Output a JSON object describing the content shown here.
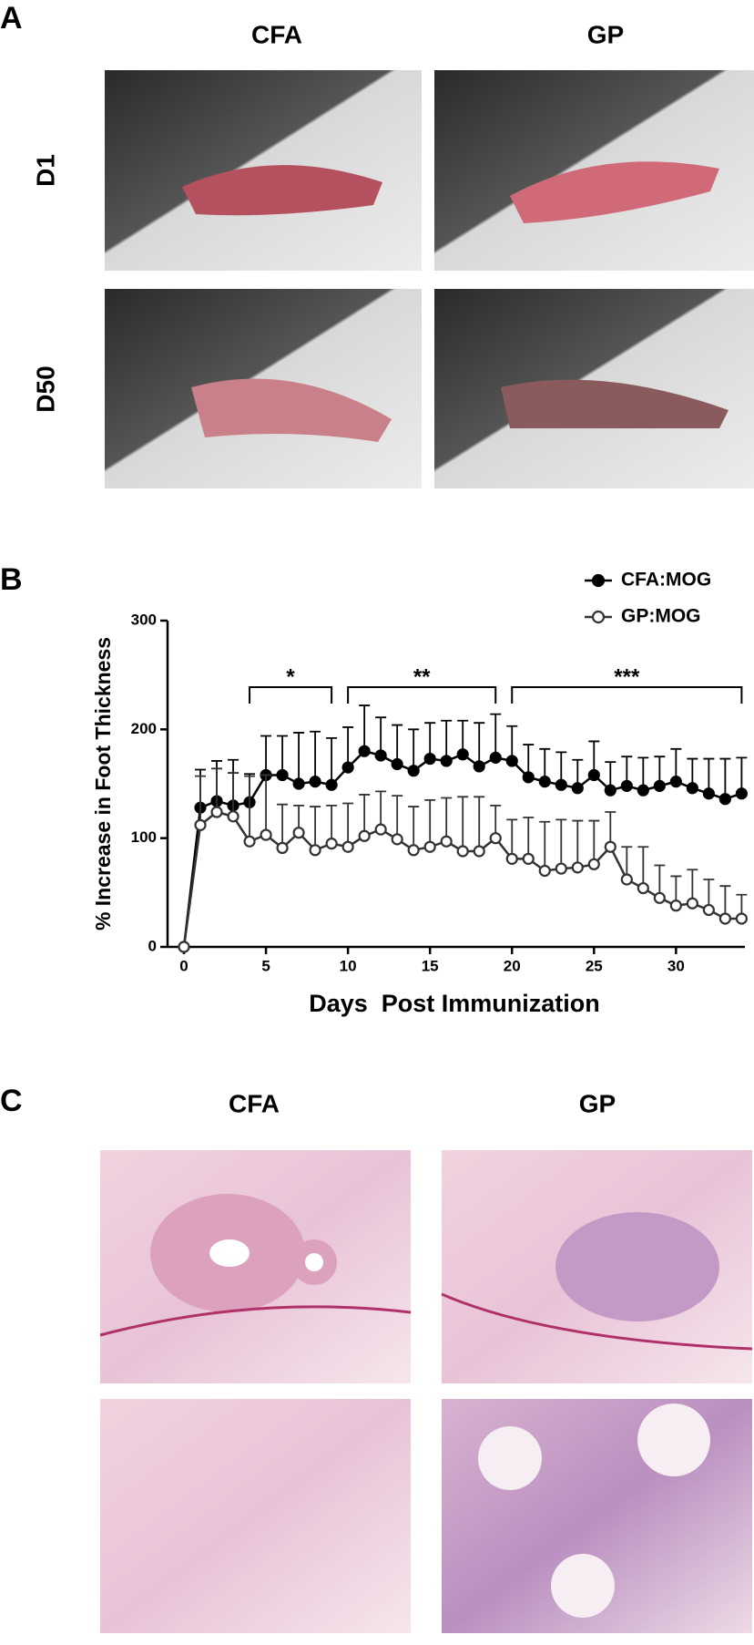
{
  "panel_a": {
    "label": "A",
    "columns": [
      "CFA",
      "GP"
    ],
    "rows": [
      "D1",
      "D50"
    ]
  },
  "chart_data": {
    "type": "line",
    "label": "B",
    "xlabel": "Days  Post Immunization",
    "ylabel": "% Increase in Foot Thickness",
    "x": [
      0,
      1,
      2,
      3,
      4,
      5,
      6,
      7,
      8,
      9,
      10,
      11,
      12,
      13,
      14,
      15,
      16,
      17,
      18,
      19,
      20,
      21,
      22,
      23,
      24,
      25,
      26,
      27,
      28,
      29,
      30,
      31,
      32,
      33,
      34
    ],
    "series": [
      {
        "name": "CFA:MOG",
        "color": "#000000",
        "marker_fill": "#000000",
        "values": [
          0,
          128,
          134,
          130,
          133,
          158,
          158,
          150,
          152,
          149,
          165,
          180,
          176,
          168,
          162,
          173,
          171,
          177,
          166,
          174,
          171,
          156,
          152,
          149,
          146,
          158,
          144,
          148,
          144,
          148,
          152,
          146,
          141,
          136,
          141
        ],
        "errors": [
          0,
          35,
          37,
          42,
          26,
          36,
          36,
          47,
          46,
          43,
          37,
          42,
          35,
          36,
          38,
          33,
          37,
          31,
          40,
          40,
          32,
          30,
          30,
          30,
          26,
          31,
          26,
          27,
          30,
          27,
          30,
          27,
          32,
          37,
          33
        ]
      },
      {
        "name": "GP:MOG",
        "color": "#333333",
        "marker_fill": "#ffffff",
        "values": [
          0,
          112,
          124,
          120,
          97,
          103,
          91,
          105,
          89,
          95,
          92,
          102,
          108,
          99,
          89,
          92,
          97,
          88,
          88,
          100,
          81,
          81,
          70,
          72,
          73,
          76,
          92,
          62,
          54,
          45,
          38,
          40,
          34,
          26,
          26
        ],
        "errors": [
          0,
          45,
          40,
          40,
          60,
          55,
          40,
          25,
          40,
          35,
          40,
          38,
          35,
          40,
          40,
          43,
          40,
          50,
          50,
          30,
          36,
          38,
          45,
          45,
          43,
          40,
          32,
          30,
          38,
          30,
          27,
          31,
          28,
          30,
          22
        ]
      }
    ],
    "annotations": [
      {
        "text": "*",
        "x_range": [
          4,
          9
        ]
      },
      {
        "text": "**",
        "x_range": [
          10,
          19
        ]
      },
      {
        "text": "***",
        "x_range": [
          20,
          34
        ]
      }
    ],
    "xlim": [
      -1,
      34.2
    ],
    "xticks": [
      0,
      5,
      10,
      15,
      20,
      25,
      30
    ],
    "ylim": [
      0,
      300
    ],
    "yticks": [
      0,
      100,
      200,
      300
    ],
    "legend": "top-right"
  },
  "panel_c": {
    "label": "C",
    "columns": [
      "CFA",
      "GP"
    ]
  }
}
